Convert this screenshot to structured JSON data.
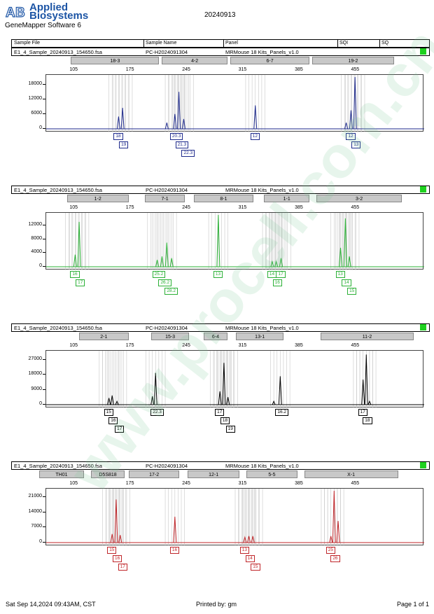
{
  "header": {
    "logo_line1": "Applied",
    "logo_line2": "Biosystems",
    "software": "GeneMapper Software 6",
    "run_date": "20240913",
    "columns": {
      "sample_file": "Sample File",
      "sample_name": "Sample Name",
      "panel": "Panel",
      "sqi": "SQI",
      "sq": "SQ"
    }
  },
  "colors": {
    "blue": "#1e2a8c",
    "green": "#2bb036",
    "black": "#000000",
    "red": "#c0262a",
    "sqi": "#1fd11f"
  },
  "bp_ticks": [
    "105",
    "175",
    "245",
    "315",
    "385",
    "455"
  ],
  "footer": {
    "printed_at": "Sat Sep 14,2024 09:43AM, CST",
    "printed_by": "Printed by: gm",
    "page": "Page 1 of 1"
  },
  "watermark": "www.procell.com.cn",
  "chart_data": [
    {
      "type": "line",
      "dye": "blue",
      "sample_file": "E1_4_Sample_20240913_154650.fsa",
      "sample_name": "PC-H2024091304",
      "panel": "MRMouse 18 Kits_Panels_v1.0",
      "ylim": [
        0,
        21000
      ],
      "yticks": [
        "18000",
        "12000",
        "6000",
        "0"
      ],
      "markers": [
        {
          "label": "18-3",
          "start": 100,
          "end": 213
        },
        {
          "label": "4-2",
          "start": 213,
          "end": 298
        },
        {
          "label": "6-7",
          "start": 298,
          "end": 400
        },
        {
          "label": "19-2",
          "start": 400,
          "end": 505
        }
      ],
      "peaks": [
        [
          160,
          5000
        ],
        [
          165,
          8500
        ],
        [
          220,
          2500
        ],
        [
          230,
          6000
        ],
        [
          235,
          15000
        ],
        [
          241,
          4000
        ],
        [
          330,
          9500
        ],
        [
          443,
          2500
        ],
        [
          449,
          7500
        ],
        [
          454,
          21000
        ]
      ],
      "alleles": [
        {
          "label": "18",
          "bp": 160,
          "level": 0
        },
        {
          "label": "19",
          "bp": 165,
          "level": 1
        },
        {
          "label": "20.3",
          "bp": 230,
          "level": 0
        },
        {
          "label": "21.3",
          "bp": 235,
          "level": 1
        },
        {
          "label": "22.3",
          "bp": 241,
          "level": 2
        },
        {
          "label": "12",
          "bp": 330,
          "level": 0
        },
        {
          "label": "12",
          "bp": 449,
          "level": 0
        },
        {
          "label": "13",
          "bp": 454,
          "level": 1
        }
      ]
    },
    {
      "type": "line",
      "dye": "green",
      "sample_file": "E1_4_Sample_20240913_154650.fsa",
      "sample_name": "PC-H2024091304",
      "panel": "MRMouse 18 Kits_Panels_v1.0",
      "ylim": [
        0,
        15000
      ],
      "yticks": [
        "12000",
        "8000",
        "4000",
        "0"
      ],
      "markers": [
        {
          "label": "1-2",
          "start": 95,
          "end": 175
        },
        {
          "label": "7-1",
          "start": 192,
          "end": 245
        },
        {
          "label": "8-1",
          "start": 253,
          "end": 330
        },
        {
          "label": "1-1",
          "start": 340,
          "end": 400
        },
        {
          "label": "3-2",
          "start": 405,
          "end": 515
        }
      ],
      "peaks": [
        [
          106,
          3500
        ],
        [
          111,
          13000
        ],
        [
          208,
          2000
        ],
        [
          214,
          3000
        ],
        [
          220,
          7000
        ],
        [
          226,
          2500
        ],
        [
          284,
          15000
        ],
        [
          351,
          1500
        ],
        [
          356,
          1500
        ],
        [
          362,
          2500
        ],
        [
          436,
          5500
        ],
        [
          442,
          14000
        ],
        [
          447,
          3000
        ]
      ],
      "alleles": [
        {
          "label": "16",
          "bp": 106,
          "level": 0
        },
        {
          "label": "17",
          "bp": 111,
          "level": 1
        },
        {
          "label": "25.2",
          "bp": 208,
          "level": 0
        },
        {
          "label": "26.2",
          "bp": 214,
          "level": 1
        },
        {
          "label": "28.2",
          "bp": 220,
          "level": 2
        },
        {
          "label": "13",
          "bp": 284,
          "level": 0
        },
        {
          "label": "14",
          "bp": 351,
          "level": 0
        },
        {
          "label": "17",
          "bp": 362,
          "level": 0
        },
        {
          "label": "16",
          "bp": 356,
          "level": 1
        },
        {
          "label": "13",
          "bp": 436,
          "level": 0
        },
        {
          "label": "14",
          "bp": 442,
          "level": 1
        },
        {
          "label": "15",
          "bp": 447,
          "level": 2
        }
      ]
    },
    {
      "type": "line",
      "dye": "black",
      "sample_file": "E1_4_Sample_20240913_154650.fsa",
      "sample_name": "PC-H2024091304",
      "panel": "MRMouse 18 Kits_Panels_v1.0",
      "ylim": [
        0,
        31000
      ],
      "yticks": [
        "27000",
        "18000",
        "9000",
        "0"
      ],
      "markers": [
        {
          "label": "2-1",
          "start": 110,
          "end": 175
        },
        {
          "label": "15-3",
          "start": 200,
          "end": 250
        },
        {
          "label": "6-4",
          "start": 265,
          "end": 298
        },
        {
          "label": "13-1",
          "start": 305,
          "end": 368
        },
        {
          "label": "11-2",
          "start": 410,
          "end": 530
        }
      ],
      "peaks": [
        [
          148,
          4000
        ],
        [
          152,
          5500
        ],
        [
          158,
          2000
        ],
        [
          202,
          5000
        ],
        [
          206,
          19000
        ],
        [
          286,
          8000
        ],
        [
          291,
          25000
        ],
        [
          296,
          4500
        ],
        [
          361,
          17000
        ],
        [
          353,
          2000
        ],
        [
          464,
          15000
        ],
        [
          468,
          30000
        ],
        [
          472,
          2000
        ]
      ],
      "alleles": [
        {
          "label": "15",
          "bp": 148,
          "level": 0
        },
        {
          "label": "16",
          "bp": 152,
          "level": 1
        },
        {
          "label": "17",
          "bp": 158,
          "level": 2
        },
        {
          "label": "22.3",
          "bp": 206,
          "level": 0
        },
        {
          "label": "17",
          "bp": 286,
          "level": 0
        },
        {
          "label": "18",
          "bp": 291,
          "level": 1
        },
        {
          "label": "19",
          "bp": 296,
          "level": 2
        },
        {
          "label": "16.2",
          "bp": 361,
          "level": 0
        },
        {
          "label": "17",
          "bp": 464,
          "level": 0
        },
        {
          "label": "18",
          "bp": 468,
          "level": 1
        }
      ]
    },
    {
      "type": "line",
      "dye": "red",
      "sample_file": "E1_4_Sample_20240913_154650.fsa",
      "sample_name": "PC-H2024091304",
      "panel": "MRMouse 18 Kits_Panels_v1.0",
      "ylim": [
        0,
        24000
      ],
      "yticks": [
        "21000",
        "14000",
        "7000",
        "0"
      ],
      "markers": [
        {
          "label": "TH01",
          "start": 60,
          "end": 120
        },
        {
          "label": "D5S818",
          "start": 125,
          "end": 170
        },
        {
          "label": "17-2",
          "start": 172,
          "end": 238
        },
        {
          "label": "12-1",
          "start": 245,
          "end": 313
        },
        {
          "label": "5-5",
          "start": 318,
          "end": 385
        },
        {
          "label": "X-1",
          "start": 390,
          "end": 510
        }
      ],
      "peaks": [
        [
          152,
          4000
        ],
        [
          157,
          20000
        ],
        [
          162,
          3500
        ],
        [
          230,
          12000
        ],
        [
          317,
          2500
        ],
        [
          322,
          3000
        ],
        [
          327,
          3000
        ],
        [
          424,
          3000
        ],
        [
          428,
          24000
        ],
        [
          433,
          10000
        ]
      ],
      "alleles": [
        {
          "label": "15",
          "bp": 152,
          "level": 0
        },
        {
          "label": "16",
          "bp": 157,
          "level": 1
        },
        {
          "label": "17",
          "bp": 162,
          "level": 2
        },
        {
          "label": "16",
          "bp": 230,
          "level": 0
        },
        {
          "label": "13",
          "bp": 317,
          "level": 0
        },
        {
          "label": "14",
          "bp": 322,
          "level": 1
        },
        {
          "label": "15",
          "bp": 327,
          "level": 2
        },
        {
          "label": "25",
          "bp": 424,
          "level": 0
        },
        {
          "label": "26",
          "bp": 428,
          "level": 1
        }
      ]
    }
  ]
}
